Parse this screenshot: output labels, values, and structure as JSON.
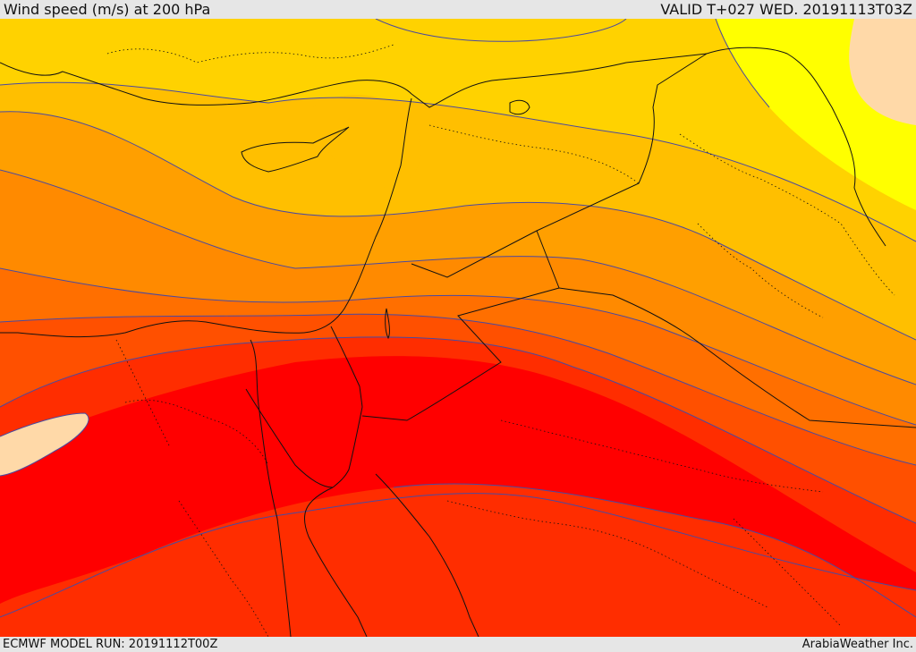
{
  "header": {
    "title": "Wind speed (m/s) at 200 hPa",
    "valid": "VALID T+027 WED. 20191113T03Z"
  },
  "footer": {
    "model_run": "ECMWF MODEL RUN: 20191112T00Z",
    "credit": "ArabiaWeather Inc."
  },
  "map": {
    "field": "wind speed",
    "level_hpa": 200,
    "units": "m/s",
    "region": "Eastern Mediterranean / Levant / Egypt / Iraq",
    "palette": [
      "#ffd9a8",
      "#ffff00",
      "#ffd200",
      "#ffbf00",
      "#ff9f00",
      "#ff8a00",
      "#ff6f00",
      "#ff5000",
      "#ff2d00",
      "#ff0000"
    ],
    "contour_color": "#4a4aa0",
    "border_color": "#111111",
    "subregion_border_style": "dotted"
  }
}
